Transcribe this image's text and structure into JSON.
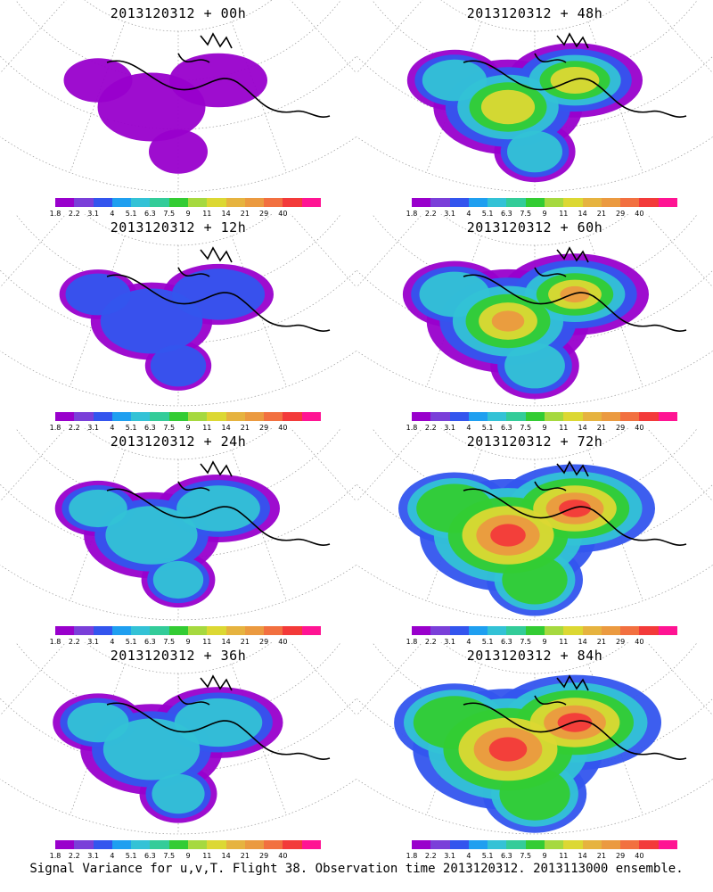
{
  "panels": [
    {
      "title": "2013120312 + 00h",
      "level": 0
    },
    {
      "title": "2013120312 + 48h",
      "level": 3
    },
    {
      "title": "2013120312 + 12h",
      "level": 1
    },
    {
      "title": "2013120312 + 60h",
      "level": 4
    },
    {
      "title": "2013120312 + 24h",
      "level": 2
    },
    {
      "title": "2013120312 + 72h",
      "level": 5
    },
    {
      "title": "2013120312 + 36h",
      "level": 2.5
    },
    {
      "title": "2013120312 + 84h",
      "level": 6
    }
  ],
  "colorbar": {
    "colors": [
      "#9900cc",
      "#7a3fd9",
      "#3355ee",
      "#1f9ff0",
      "#33c2d6",
      "#33cc99",
      "#33cc33",
      "#a6d93f",
      "#dcd833",
      "#e6b33f",
      "#eb9a40",
      "#f27040",
      "#f33a3a",
      "#ff1493"
    ],
    "ticks": [
      "1.8",
      "2.2",
      "3.1",
      "4",
      "5.1",
      "6.3",
      "7.5",
      "9",
      "11",
      "14",
      "21",
      "29",
      "40"
    ]
  },
  "caption": "Signal Variance for u,v,T. Flight 38. Observation time 2013120312. 2013113000 ensemble."
}
